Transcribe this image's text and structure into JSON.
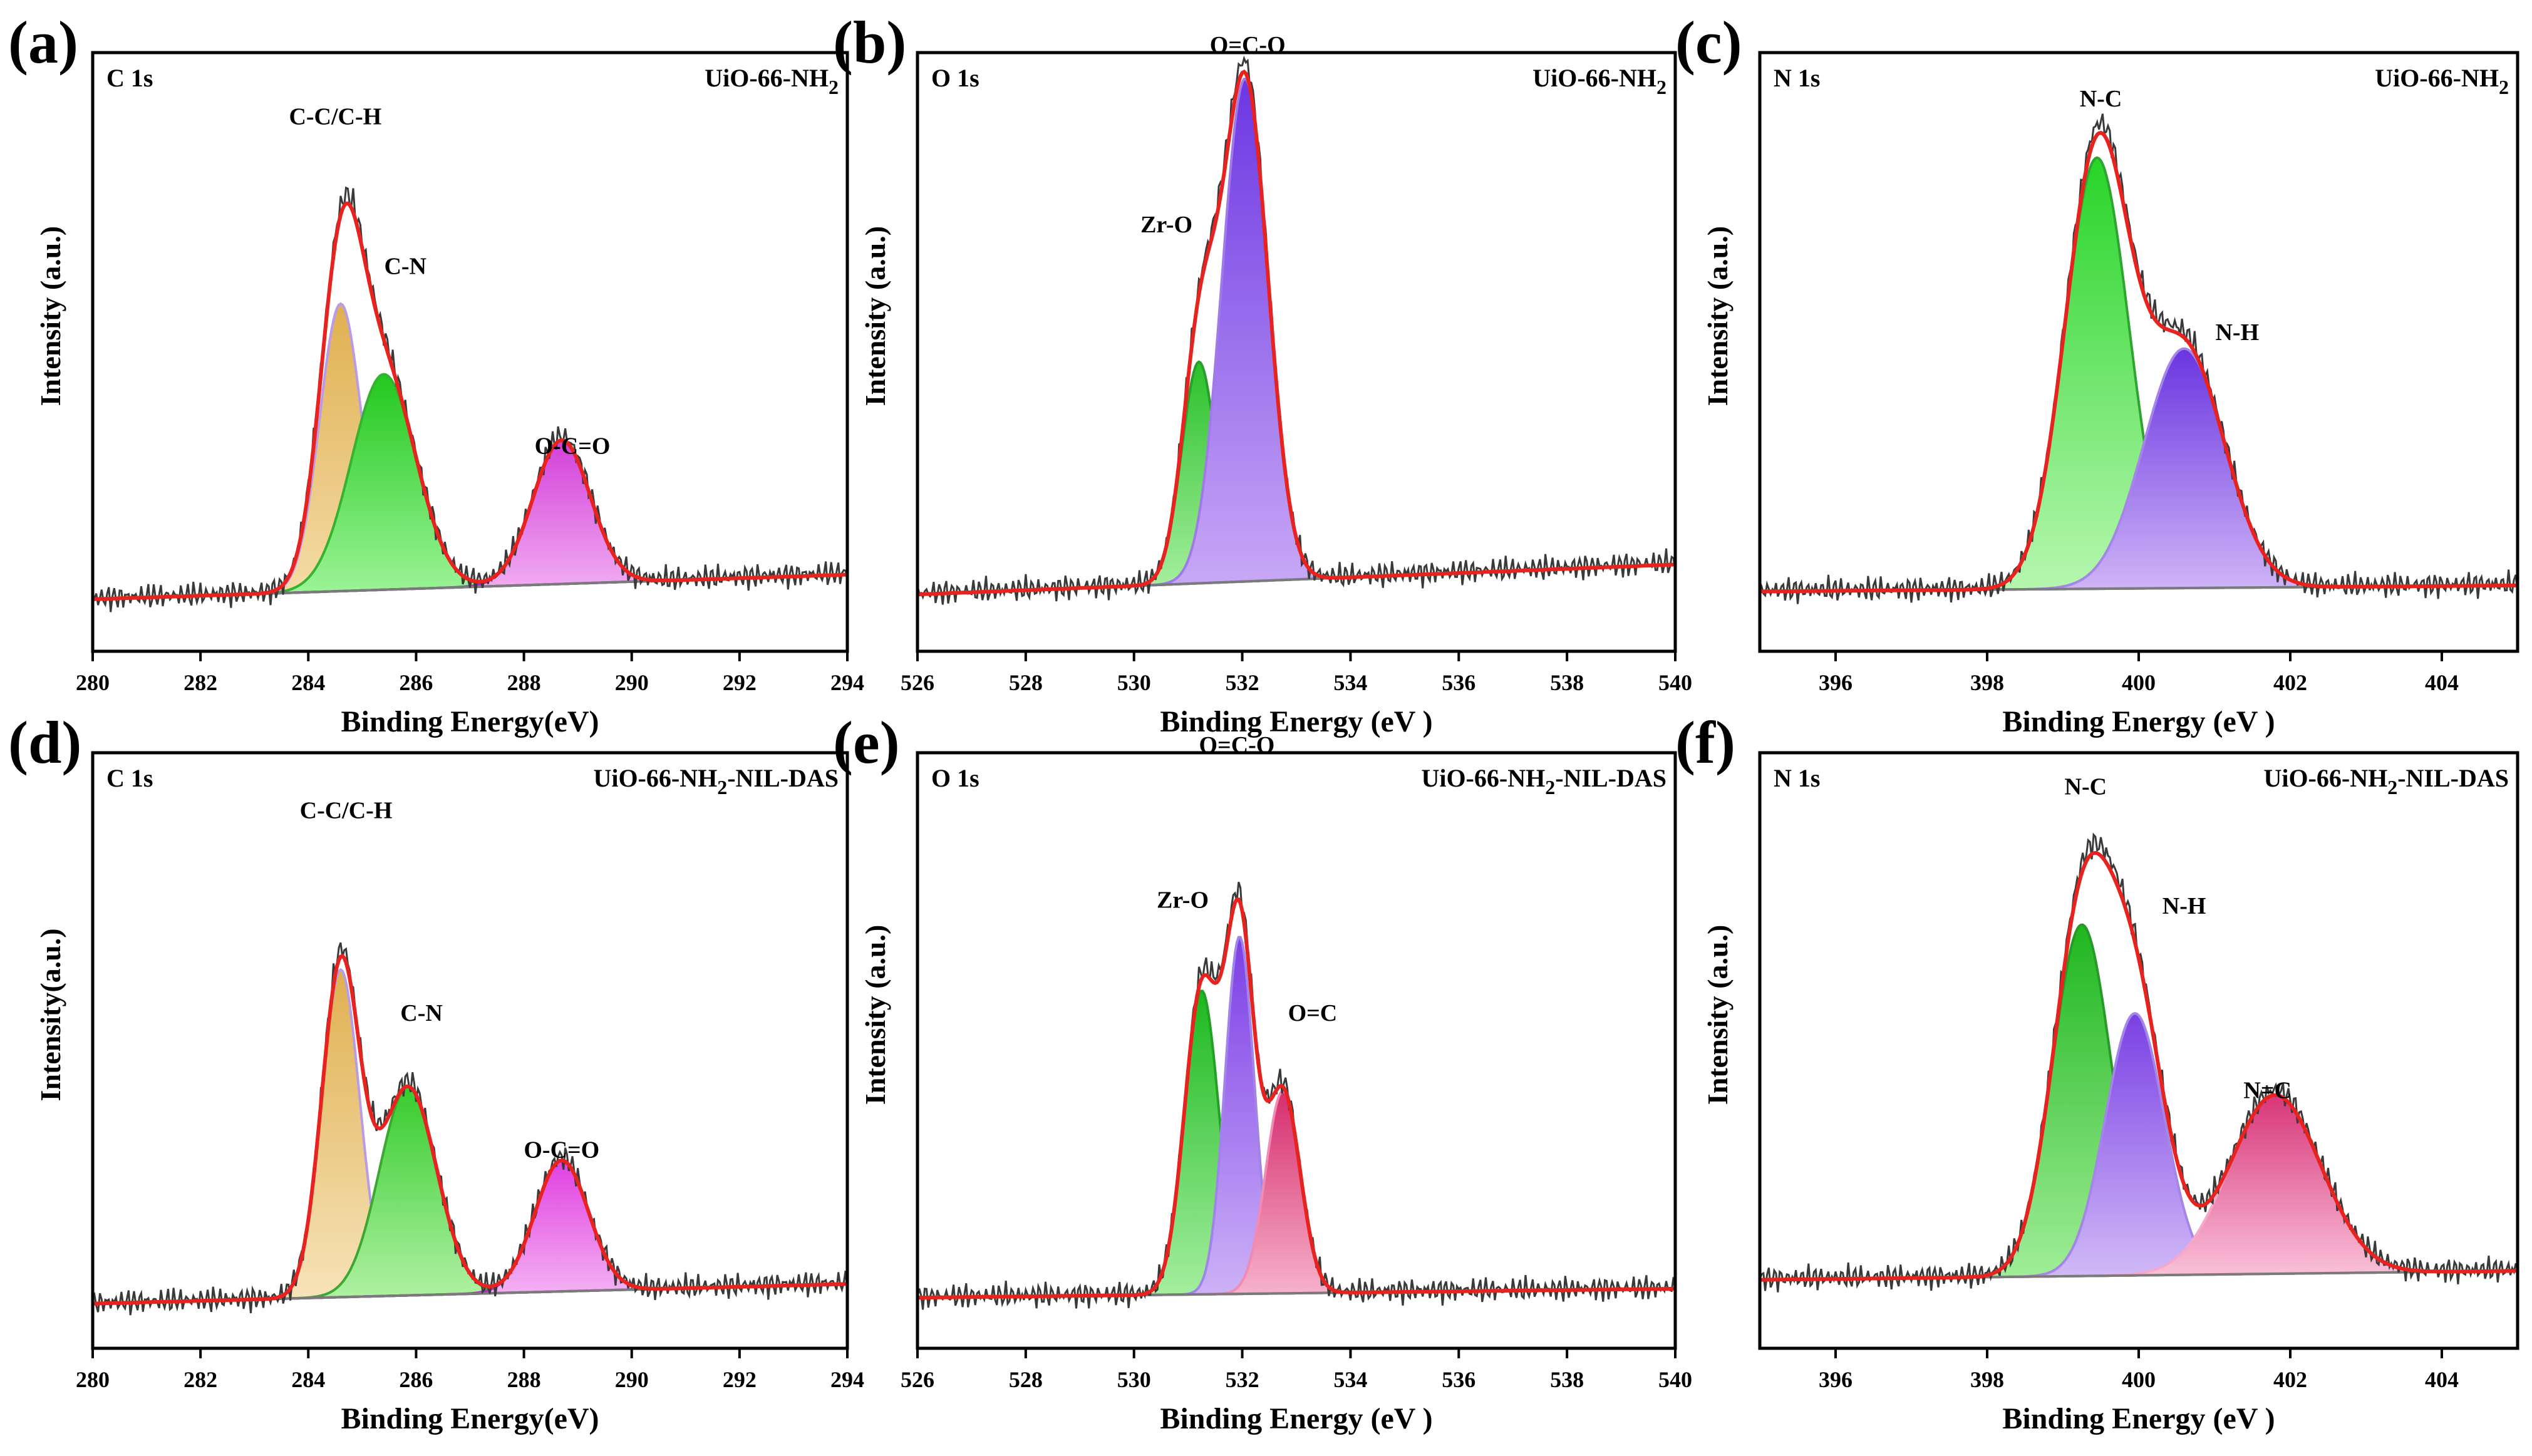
{
  "chart_data": [
    {
      "type": "line",
      "panel_label": "(a)",
      "corner_left": "C 1s",
      "sample": {
        "main": "UiO-66-NH",
        "sub": "2",
        "suffix": ""
      },
      "xlabel": "Binding Energy(eV)",
      "ylabel": "Intensity (a.u.)",
      "xlim": [
        280,
        294
      ],
      "ylim": [
        0,
        1
      ],
      "xticks": [
        280,
        282,
        284,
        286,
        288,
        290,
        292,
        294
      ],
      "baseline": [
        0.087,
        0.128
      ],
      "peaks": [
        {
          "label": "C-C/C-H",
          "center": 284.6,
          "height": 0.48,
          "width": 0.55,
          "color_top": "#e0b050",
          "color_bottom": "#f4dca8",
          "edge": "#b99be8"
        },
        {
          "label": "C-N",
          "center": 285.4,
          "height": 0.36,
          "width": 0.85,
          "color_top": "#22c81e",
          "color_bottom": "#9ff59a",
          "edge": "#35b230"
        },
        {
          "label": "O-C=O",
          "center": 288.7,
          "height": 0.24,
          "width": 0.75,
          "color_top": "#d33fd8",
          "color_bottom": "#f3b4f4",
          "edge": "#b026c0"
        }
      ],
      "annotations": [
        {
          "text": "C-C/C-H",
          "x": 284.5,
          "y": 0.88
        },
        {
          "text": "C-N",
          "x": 285.8,
          "y": 0.63
        },
        {
          "text": "O-C=O",
          "x": 288.9,
          "y": 0.33
        }
      ]
    },
    {
      "type": "line",
      "panel_label": "(b)",
      "corner_left": "O 1s",
      "sample": {
        "main": "UiO-66-NH",
        "sub": "2",
        "suffix": ""
      },
      "xlabel": "Binding Energy (eV )",
      "ylabel": "Intensity (a.u.)",
      "xlim": [
        526,
        540
      ],
      "ylim": [
        0,
        1
      ],
      "xticks": [
        526,
        528,
        530,
        532,
        534,
        536,
        538,
        540
      ],
      "baseline": [
        0.095,
        0.145
      ],
      "peaks": [
        {
          "label": "Zr-O",
          "center": 531.2,
          "height": 0.37,
          "width": 0.45,
          "color_top": "#2ac02a",
          "color_bottom": "#a9f0a2",
          "edge": "#2b9d2b"
        },
        {
          "label": "O=C-O",
          "center": 532.05,
          "height": 0.84,
          "width": 0.6,
          "color_top": "#6c36e3",
          "color_bottom": "#c9aaf6",
          "edge": "#a07ae8"
        }
      ],
      "annotations": [
        {
          "text": "O=C-O",
          "x": 532.1,
          "y": 1.0
        },
        {
          "text": "Zr-O",
          "x": 530.6,
          "y": 0.7
        }
      ]
    },
    {
      "type": "line",
      "panel_label": "(c)",
      "corner_left": "N 1s",
      "sample": {
        "main": "UiO-66-NH",
        "sub": "2",
        "suffix": ""
      },
      "xlabel": "Binding Energy (eV )",
      "ylabel": "Intensity (a.u.)",
      "xlim": [
        395,
        405
      ],
      "ylim": [
        0,
        1
      ],
      "xticks": [
        396,
        398,
        400,
        402,
        404
      ],
      "baseline": [
        0.1,
        0.11
      ],
      "peaks": [
        {
          "label": "N-C",
          "center": 399.45,
          "height": 0.72,
          "width": 0.6,
          "color_top": "#27d428",
          "color_bottom": "#b7f7b0",
          "edge": "#2ea52e"
        },
        {
          "label": "N-H",
          "center": 400.6,
          "height": 0.4,
          "width": 0.75,
          "color_top": "#6a35e0",
          "color_bottom": "#cfb5f7",
          "edge": "#a586e8"
        }
      ],
      "annotations": [
        {
          "text": "N-C",
          "x": 399.5,
          "y": 0.91
        },
        {
          "text": "N-H",
          "x": 401.3,
          "y": 0.52
        }
      ]
    },
    {
      "type": "line",
      "panel_label": "(d)",
      "corner_left": "C 1s",
      "sample": {
        "main": "UiO-66-NH",
        "sub": "2",
        "suffix": "-NIL-DAS"
      },
      "xlabel": "Binding Energy(eV)",
      "ylabel": "Intensity(a.u.)",
      "xlim": [
        280,
        294
      ],
      "ylim": [
        0,
        1
      ],
      "xticks": [
        280,
        282,
        284,
        286,
        288,
        290,
        292,
        294
      ],
      "baseline": [
        0.075,
        0.108
      ],
      "peaks": [
        {
          "label": "C-C/C-H",
          "center": 284.6,
          "height": 0.55,
          "width": 0.5,
          "color_top": "#e0b050",
          "color_bottom": "#f7e4bb",
          "edge": "#b99be8"
        },
        {
          "label": "C-N",
          "center": 285.85,
          "height": 0.35,
          "width": 0.75,
          "color_top": "#36cb2d",
          "color_bottom": "#b3f2a6",
          "edge": "#3da732"
        },
        {
          "label": "O-C=O",
          "center": 288.7,
          "height": 0.22,
          "width": 0.7,
          "color_top": "#e040e0",
          "color_bottom": "#f5b9f5",
          "edge": "#b52dc4"
        }
      ],
      "annotations": [
        {
          "text": "C-C/C-H",
          "x": 284.7,
          "y": 0.89
        },
        {
          "text": "C-N",
          "x": 286.1,
          "y": 0.55
        },
        {
          "text": "O-C=O",
          "x": 288.7,
          "y": 0.32
        }
      ]
    },
    {
      "type": "line",
      "panel_label": "(e)",
      "corner_left": "O 1s",
      "sample": {
        "main": "UiO-66-NH",
        "sub": "2",
        "suffix": "-NIL-DAS"
      },
      "xlabel": "Binding Energy (eV )",
      "ylabel": "Intensity (a.u.)",
      "xlim": [
        526,
        540
      ],
      "ylim": [
        0,
        1
      ],
      "xticks": [
        526,
        528,
        530,
        532,
        534,
        536,
        538,
        540
      ],
      "baseline": [
        0.085,
        0.1
      ],
      "peaks": [
        {
          "label": "Zr-O",
          "center": 531.25,
          "height": 0.51,
          "width": 0.45,
          "color_top": "#1db81f",
          "color_bottom": "#a5efa0",
          "edge": "#22a122"
        },
        {
          "label": "O=C-O",
          "center": 531.95,
          "height": 0.6,
          "width": 0.38,
          "color_top": "#7c3ee6",
          "color_bottom": "#cdb3f7",
          "edge": "#a283e9"
        },
        {
          "label": "O=C",
          "center": 532.75,
          "height": 0.34,
          "width": 0.45,
          "color_top": "#d62d6c",
          "color_bottom": "#f7b4cc",
          "edge": "#f28bb4"
        }
      ],
      "annotations": [
        {
          "text": "O=C-O",
          "x": 531.9,
          "y": 1.0
        },
        {
          "text": "Zr-O",
          "x": 530.9,
          "y": 0.74
        },
        {
          "text": "O=C",
          "x": 533.3,
          "y": 0.55
        }
      ]
    },
    {
      "type": "line",
      "panel_label": "(f)",
      "corner_left": "N 1s",
      "sample": {
        "main": "UiO-66-NH",
        "sub": "2",
        "suffix": "-NIL-DAS"
      },
      "xlabel": "Binding Energy (eV )",
      "ylabel": "Intensity (a.u.)",
      "xlim": [
        395,
        405
      ],
      "ylim": [
        0,
        1
      ],
      "xticks": [
        396,
        398,
        400,
        402,
        404
      ],
      "baseline": [
        0.115,
        0.13
      ],
      "peaks": [
        {
          "label": "N-C",
          "center": 399.25,
          "height": 0.59,
          "width": 0.55,
          "color_top": "#1fb61f",
          "color_bottom": "#a1ee98",
          "edge": "#279a27"
        },
        {
          "label": "N-H",
          "center": 399.95,
          "height": 0.44,
          "width": 0.55,
          "color_top": "#7a40e4",
          "color_bottom": "#d2bbf7",
          "edge": "#a485e8"
        },
        {
          "label": "N=C",
          "center": 401.8,
          "height": 0.3,
          "width": 0.85,
          "color_top": "#d8367a",
          "color_bottom": "#fac4da",
          "edge": "#f7a6cd"
        }
      ],
      "annotations": [
        {
          "text": "N-C",
          "x": 399.3,
          "y": 0.93
        },
        {
          "text": "N-H",
          "x": 400.6,
          "y": 0.73
        },
        {
          "text": "N=C",
          "x": 401.7,
          "y": 0.42
        }
      ]
    }
  ]
}
